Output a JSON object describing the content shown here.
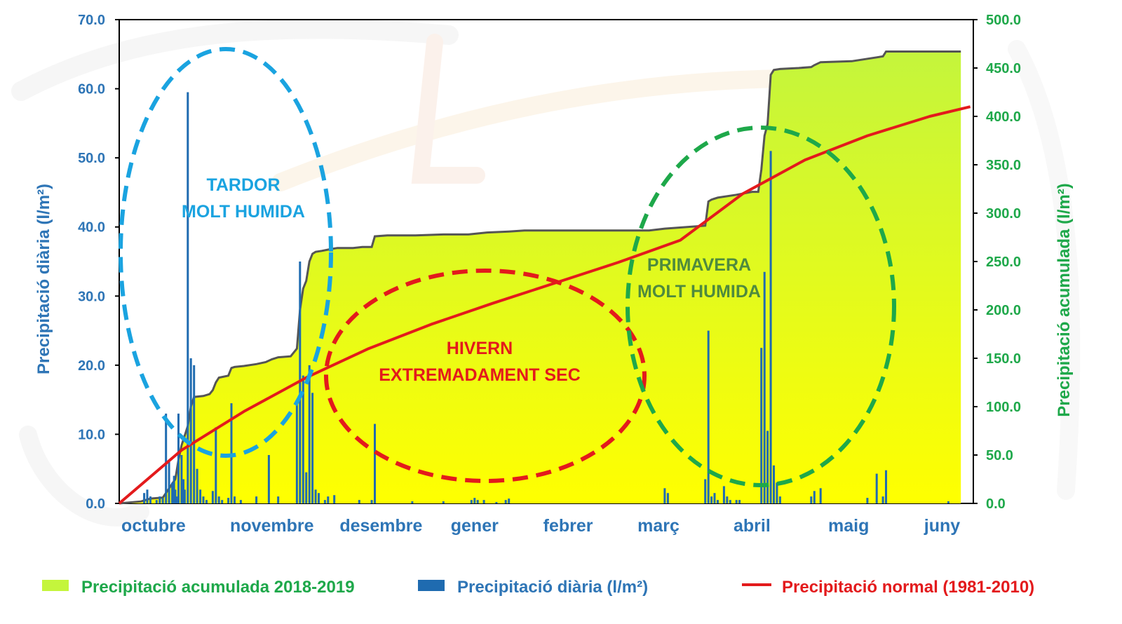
{
  "chart_data": {
    "type": "bar+area+line",
    "title": "",
    "y_left": {
      "label": "Precipitació diària (l/m²)",
      "ticks": [
        "0.0",
        "10.0",
        "20.0",
        "30.0",
        "40.0",
        "50.0",
        "60.0",
        "70.0"
      ],
      "range": [
        0,
        70
      ]
    },
    "y_right": {
      "label": "Precipitació acumulada (l/m²)",
      "ticks": [
        "0.0",
        "50.0",
        "100.0",
        "150.0",
        "200.0",
        "250.0",
        "300.0",
        "350.0",
        "400.0",
        "450.0",
        "500.0"
      ],
      "range": [
        0,
        500
      ]
    },
    "x_range_days": [
      0,
      274
    ],
    "months": [
      {
        "label": "octubre",
        "day": 11
      },
      {
        "label": "novembre",
        "day": 49
      },
      {
        "label": "desembre",
        "day": 84
      },
      {
        "label": "gener",
        "day": 114
      },
      {
        "label": "febrer",
        "day": 144
      },
      {
        "label": "març",
        "day": 173
      },
      {
        "label": "abril",
        "day": 203
      },
      {
        "label": "maig",
        "day": 234
      },
      {
        "label": "juny",
        "day": 264
      }
    ],
    "legend": {
      "cumulative": "Precipitació acumulada 2018-2019",
      "daily": "Precipitació diària (l/m²)",
      "normal": "Precipitació normal (1981-2010)"
    },
    "colors": {
      "daily": "#1f6bb0",
      "cumulative_top": "#c4f53c",
      "cumulative_bottom": "#ffff00",
      "normal": "#e31a1c",
      "left_axis": "#2e75b6",
      "right_axis": "#1ea84a"
    },
    "annotations": [
      {
        "lines": [
          "TARDOR",
          "MOLT HUMIDA"
        ],
        "color": "#1aa3e0"
      },
      {
        "lines": [
          "HIVERN",
          "EXTREMADAMENT SEC"
        ],
        "color": "#e31a1c"
      },
      {
        "lines": [
          "PRIMAVERA",
          "MOLT HUMIDA"
        ],
        "color": "#4e8a3e"
      }
    ],
    "daily": [
      [
        8,
        1.5
      ],
      [
        9,
        2.0
      ],
      [
        10,
        1.0
      ],
      [
        12,
        0.5
      ],
      [
        13,
        1.0
      ],
      [
        14,
        0.8
      ],
      [
        15,
        13.0
      ],
      [
        16,
        6.0
      ],
      [
        17,
        3.0
      ],
      [
        17.6,
        4.0
      ],
      [
        18,
        2.0
      ],
      [
        18.5,
        1.0
      ],
      [
        19,
        13.0
      ],
      [
        20,
        7.0
      ],
      [
        20.6,
        3.5
      ],
      [
        21,
        2.0
      ],
      [
        22,
        59.5
      ],
      [
        23,
        21.0
      ],
      [
        24,
        20.0
      ],
      [
        25,
        5.0
      ],
      [
        26,
        2.0
      ],
      [
        27,
        1.0
      ],
      [
        28,
        0.5
      ],
      [
        30,
        1.8
      ],
      [
        31,
        11.0
      ],
      [
        32,
        1.0
      ],
      [
        33,
        0.5
      ],
      [
        35,
        0.8
      ],
      [
        36,
        14.5
      ],
      [
        37,
        1.0
      ],
      [
        39,
        0.5
      ],
      [
        44,
        1.0
      ],
      [
        48,
        7.0
      ],
      [
        51,
        1.0
      ],
      [
        57,
        14.5
      ],
      [
        58,
        35.0
      ],
      [
        59,
        18.5
      ],
      [
        60,
        4.5
      ],
      [
        61,
        20.0
      ],
      [
        62,
        16.0
      ],
      [
        63,
        2.0
      ],
      [
        64,
        1.5
      ],
      [
        66,
        0.5
      ],
      [
        67,
        1.0
      ],
      [
        69,
        1.2
      ],
      [
        77,
        0.5
      ],
      [
        81,
        0.5
      ],
      [
        82,
        11.5
      ],
      [
        94,
        0.3
      ],
      [
        104,
        0.3
      ],
      [
        113,
        0.5
      ],
      [
        114,
        0.8
      ],
      [
        115,
        0.5
      ],
      [
        117,
        0.5
      ],
      [
        121,
        0.2
      ],
      [
        124,
        0.5
      ],
      [
        125,
        0.7
      ],
      [
        175,
        2.2
      ],
      [
        176,
        1.5
      ],
      [
        188,
        3.5
      ],
      [
        189,
        25.0
      ],
      [
        190,
        1.0
      ],
      [
        191,
        1.5
      ],
      [
        192,
        0.5
      ],
      [
        194,
        2.5
      ],
      [
        195,
        1.0
      ],
      [
        196,
        0.5
      ],
      [
        198,
        0.5
      ],
      [
        199,
        0.5
      ],
      [
        206,
        22.5
      ],
      [
        207,
        33.5
      ],
      [
        208,
        10.5
      ],
      [
        209,
        51.0
      ],
      [
        210,
        5.5
      ],
      [
        211,
        3.0
      ],
      [
        212,
        1.0
      ],
      [
        222,
        1.0
      ],
      [
        223,
        1.8
      ],
      [
        225,
        2.2
      ],
      [
        240,
        0.8
      ],
      [
        243,
        4.3
      ],
      [
        245,
        1.0
      ],
      [
        246,
        4.8
      ],
      [
        266,
        0.3
      ]
    ],
    "cumulative": [
      [
        0,
        0
      ],
      [
        7,
        2
      ],
      [
        10,
        5
      ],
      [
        14,
        6
      ],
      [
        18,
        25
      ],
      [
        19,
        45
      ],
      [
        20,
        60
      ],
      [
        21,
        70
      ],
      [
        22,
        80
      ],
      [
        23,
        100
      ],
      [
        24,
        110
      ],
      [
        27,
        111
      ],
      [
        29,
        113
      ],
      [
        30,
        117
      ],
      [
        31,
        125
      ],
      [
        32,
        130
      ],
      [
        35,
        132
      ],
      [
        36,
        140
      ],
      [
        37,
        141
      ],
      [
        40,
        142
      ],
      [
        44,
        144
      ],
      [
        47,
        146
      ],
      [
        49,
        149
      ],
      [
        51,
        151
      ],
      [
        55,
        152
      ],
      [
        57,
        160
      ],
      [
        58,
        200
      ],
      [
        59,
        222
      ],
      [
        60,
        230
      ],
      [
        61,
        250
      ],
      [
        62,
        258
      ],
      [
        63,
        260
      ],
      [
        65,
        261
      ],
      [
        68,
        263
      ],
      [
        70,
        264
      ],
      [
        75,
        264
      ],
      [
        78,
        265
      ],
      [
        81,
        265
      ],
      [
        82,
        276
      ],
      [
        86,
        277
      ],
      [
        95,
        277
      ],
      [
        104,
        278
      ],
      [
        112,
        278
      ],
      [
        118,
        280
      ],
      [
        125,
        281
      ],
      [
        130,
        282
      ],
      [
        150,
        282
      ],
      [
        160,
        282
      ],
      [
        170,
        282
      ],
      [
        175,
        284
      ],
      [
        188,
        287
      ],
      [
        189,
        312
      ],
      [
        190,
        314
      ],
      [
        192,
        316
      ],
      [
        198,
        319
      ],
      [
        203,
        322
      ],
      [
        205,
        322
      ],
      [
        206,
        345
      ],
      [
        207,
        380
      ],
      [
        208,
        392
      ],
      [
        209,
        443
      ],
      [
        210,
        448
      ],
      [
        212,
        449
      ],
      [
        218,
        450
      ],
      [
        222,
        451
      ],
      [
        223,
        453
      ],
      [
        225,
        456
      ],
      [
        235,
        457
      ],
      [
        243,
        461
      ],
      [
        245,
        462
      ],
      [
        246,
        467
      ],
      [
        255,
        467
      ],
      [
        266,
        467
      ],
      [
        270,
        467
      ]
    ],
    "normal": [
      [
        0,
        0
      ],
      [
        20,
        55
      ],
      [
        40,
        95
      ],
      [
        60,
        130
      ],
      [
        80,
        160
      ],
      [
        100,
        185
      ],
      [
        120,
        207
      ],
      [
        140,
        228
      ],
      [
        160,
        249
      ],
      [
        180,
        272
      ],
      [
        200,
        320
      ],
      [
        220,
        355
      ],
      [
        240,
        380
      ],
      [
        260,
        400
      ],
      [
        273,
        410
      ]
    ]
  }
}
